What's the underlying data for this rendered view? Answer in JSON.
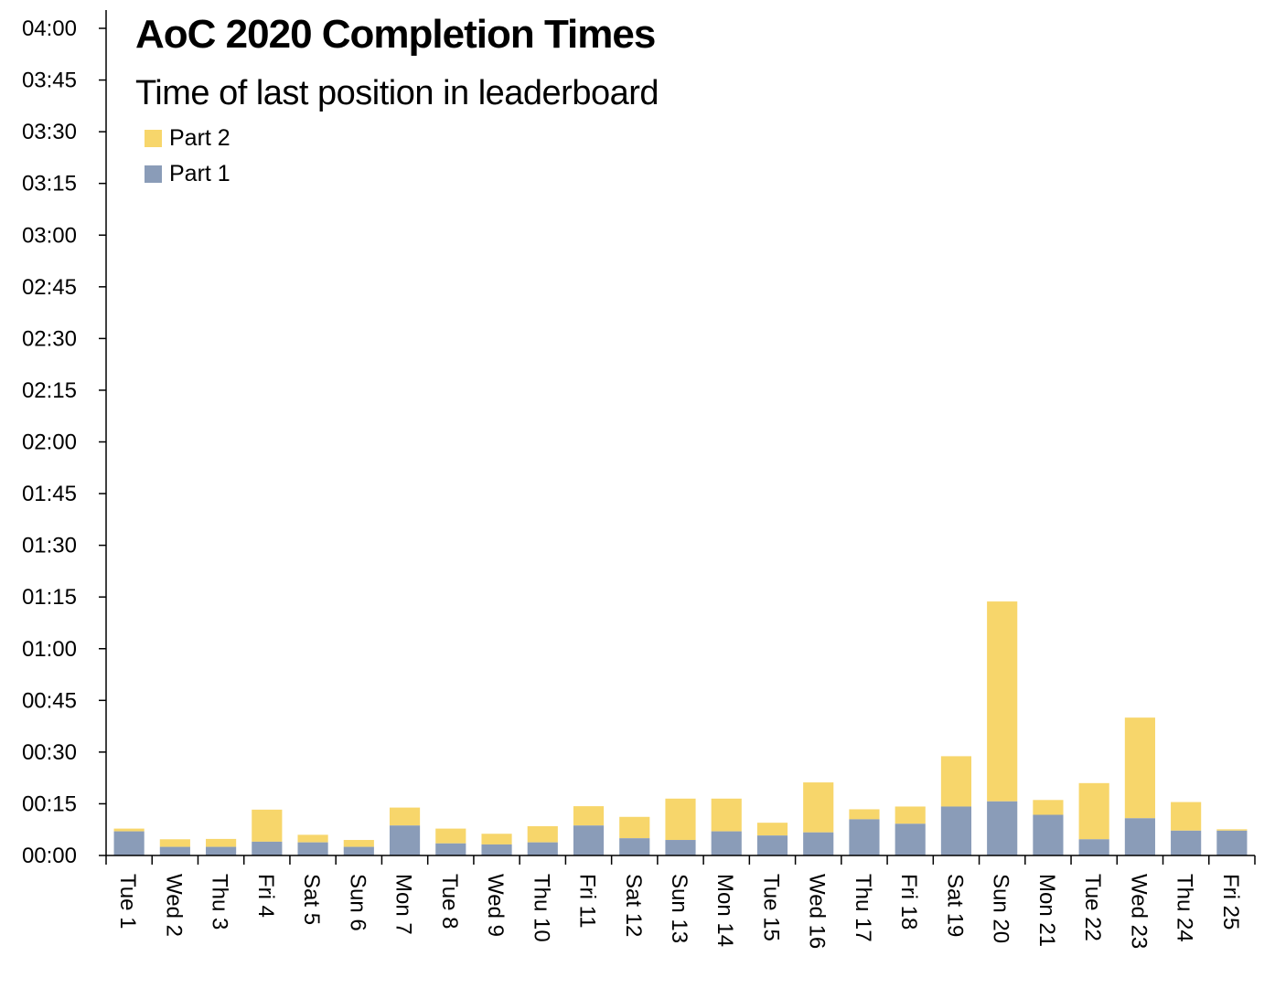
{
  "chart_data": {
    "type": "bar",
    "stacked": true,
    "title": "AoC 2020 Completion Times",
    "subtitle": "Time of last position in leaderboard",
    "xlabel": "",
    "ylabel": "",
    "ylim_minutes": [
      0,
      240
    ],
    "y_tick_step_minutes": 15,
    "y_ticks": [
      "00:00",
      "00:15",
      "00:30",
      "00:45",
      "01:00",
      "01:15",
      "01:30",
      "01:45",
      "02:00",
      "02:15",
      "02:30",
      "02:45",
      "03:00",
      "03:15",
      "03:30",
      "03:45",
      "04:00"
    ],
    "legend_position": "top-left",
    "grid": false,
    "categories": [
      "Tue 1",
      "Wed 2",
      "Thu 3",
      "Fri 4",
      "Sat 5",
      "Sun 6",
      "Mon 7",
      "Tue 8",
      "Wed 9",
      "Thu 10",
      "Fri 11",
      "Sat 12",
      "Sun 13",
      "Mon 14",
      "Tue 15",
      "Wed 16",
      "Thu 17",
      "Fri 18",
      "Sat 19",
      "Sun 20",
      "Mon 21",
      "Tue 22",
      "Wed 23",
      "Thu 24",
      "Fri 25"
    ],
    "series": [
      {
        "name": "Part 1",
        "color": "#8a9cb8",
        "unit": "minutes",
        "values": [
          7.0,
          2.5,
          2.5,
          4.0,
          3.8,
          2.5,
          8.7,
          3.5,
          3.2,
          3.8,
          8.7,
          5.0,
          4.5,
          7.0,
          5.8,
          6.7,
          10.5,
          9.2,
          14.2,
          15.7,
          11.8,
          4.7,
          10.8,
          7.2,
          7.2
        ]
      },
      {
        "name": "Part 2",
        "color": "#f7d66b",
        "unit": "minutes",
        "values": [
          0.8,
          2.2,
          2.3,
          9.3,
          2.2,
          2.0,
          5.2,
          4.3,
          3.1,
          4.7,
          5.6,
          6.2,
          12.0,
          9.5,
          3.7,
          14.5,
          2.9,
          5.0,
          14.6,
          58.0,
          4.3,
          16.3,
          29.2,
          8.3,
          0.4
        ]
      }
    ]
  }
}
